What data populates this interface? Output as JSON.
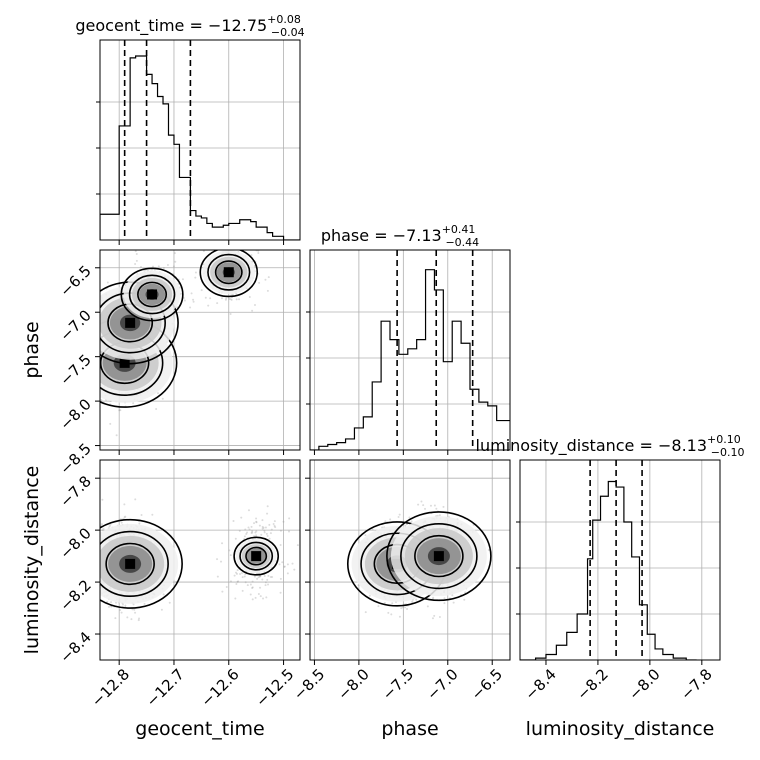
{
  "chart_data": {
    "type": "corner",
    "parameters": [
      "geocent_time",
      "phase",
      "luminosity_distance"
    ],
    "titles": [
      {
        "param": "geocent_time",
        "value": "−12.75",
        "plus": "+0.08",
        "minus": "−0.04"
      },
      {
        "param": "phase",
        "value": "−7.13",
        "plus": "+0.41",
        "minus": "−0.44"
      },
      {
        "param": "luminosity_distance",
        "value": "−8.13",
        "plus": "+0.10",
        "minus": "−0.10"
      }
    ],
    "axes": {
      "geocent_time": {
        "range": [
          -12.835,
          -12.47
        ],
        "ticks": [
          -12.8,
          -12.7,
          -12.6,
          -12.5
        ],
        "ticklabels": [
          "−12.8",
          "−12.7",
          "−12.6",
          "−12.5"
        ]
      },
      "phase": {
        "range": [
          -8.55,
          -6.3
        ],
        "ticks": [
          -8.5,
          -8.0,
          -7.5,
          -7.0,
          -6.5
        ],
        "ticklabels": [
          "−8.5",
          "−8.0",
          "−7.5",
          "−7.0",
          "−6.5"
        ]
      },
      "luminosity_distance": {
        "range": [
          -8.5,
          -7.73
        ],
        "ticks": [
          -8.4,
          -8.2,
          -8.0,
          -7.8
        ],
        "ticklabels": [
          "−8.4",
          "−8.2",
          "−8.0",
          "−7.8"
        ]
      }
    },
    "histograms": [
      {
        "param": "geocent_time",
        "edges": [
          -12.835,
          -12.8,
          -12.79,
          -12.78,
          -12.77,
          -12.76,
          -12.75,
          -12.74,
          -12.73,
          -12.72,
          -12.71,
          -12.7,
          -12.69,
          -12.68,
          -12.67,
          -12.66,
          -12.65,
          -12.64,
          -12.63,
          -12.62,
          -12.61,
          -12.6,
          -12.59,
          -12.58,
          -12.57,
          -12.56,
          -12.55,
          -12.54,
          -12.53,
          -12.52,
          -12.51,
          -12.5,
          -12.49,
          -12.47
        ],
        "counts": [
          0.14,
          0.62,
          0.62,
          0.99,
          1.0,
          1.0,
          0.9,
          0.85,
          0.78,
          0.74,
          0.57,
          0.52,
          0.34,
          0.34,
          0.16,
          0.13,
          0.12,
          0.09,
          0.07,
          0.07,
          0.08,
          0.09,
          0.09,
          0.11,
          0.11,
          0.1,
          0.07,
          0.07,
          0.04,
          0.02,
          0.02,
          0.0,
          0.0
        ],
        "quantiles": [
          -12.79,
          -12.75,
          -12.67
        ]
      },
      {
        "param": "phase",
        "edges": [
          -8.55,
          -8.45,
          -8.35,
          -8.25,
          -8.15,
          -8.05,
          -7.95,
          -7.85,
          -7.75,
          -7.65,
          -7.55,
          -7.45,
          -7.35,
          -7.25,
          -7.15,
          -7.05,
          -6.95,
          -6.85,
          -6.75,
          -6.65,
          -6.55,
          -6.45,
          -6.3
        ],
        "counts": [
          0.0,
          0.02,
          0.03,
          0.04,
          0.06,
          0.12,
          0.18,
          0.37,
          0.7,
          0.6,
          0.52,
          0.55,
          0.6,
          0.98,
          0.87,
          0.48,
          0.7,
          0.58,
          0.33,
          0.26,
          0.24,
          0.16
        ],
        "quantiles": [
          -7.57,
          -7.13,
          -6.72
        ]
      },
      {
        "param": "luminosity_distance",
        "edges": [
          -8.5,
          -8.44,
          -8.4,
          -8.36,
          -8.32,
          -8.28,
          -8.24,
          -8.22,
          -8.19,
          -8.16,
          -8.13,
          -8.1,
          -8.07,
          -8.04,
          -8.01,
          -7.98,
          -7.95,
          -7.91,
          -7.86,
          -7.82
        ],
        "counts": [
          0.0,
          0.01,
          0.03,
          0.08,
          0.15,
          0.25,
          0.55,
          0.76,
          0.89,
          0.97,
          0.94,
          0.75,
          0.56,
          0.3,
          0.14,
          0.06,
          0.03,
          0.01,
          0.0
        ],
        "quantiles": [
          -8.23,
          -8.13,
          -8.03
        ]
      }
    ],
    "density_2d": [
      {
        "x": "geocent_time",
        "y": "phase",
        "peaks": [
          [
            -12.79,
            -7.57,
            1.0
          ],
          [
            -12.78,
            -7.12,
            0.85
          ],
          [
            -12.74,
            -6.8,
            0.35
          ],
          [
            -12.6,
            -6.55,
            0.3
          ]
        ]
      },
      {
        "x": "geocent_time",
        "y": "luminosity_distance",
        "peaks": [
          [
            -12.78,
            -8.13,
            1.0
          ],
          [
            -12.55,
            -8.1,
            0.18
          ]
        ]
      },
      {
        "x": "phase",
        "y": "luminosity_distance",
        "peaks": [
          [
            -7.57,
            -8.13,
            0.9
          ],
          [
            -7.1,
            -8.1,
            1.0
          ]
        ]
      }
    ],
    "grid": true,
    "legend": "none"
  }
}
